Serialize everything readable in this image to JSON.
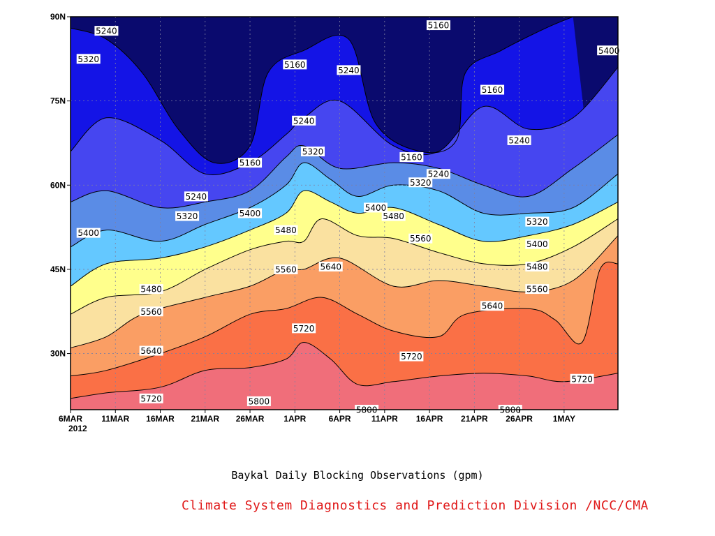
{
  "chart_data": {
    "type": "contour",
    "caption": "Baykal Daily Blocking Observations (gpm)",
    "credit": "Climate System Diagnostics and Prediction Division /NCC/CMA",
    "x_ticks": [
      "6MAR",
      "11MAR",
      "16MAR",
      "21MAR",
      "26MAR",
      "1APR",
      "6APR",
      "11APR",
      "16APR",
      "21APR",
      "26APR",
      "1MAY"
    ],
    "x_year": "2012",
    "y_ticks": [
      "30N",
      "45N",
      "60N",
      "75N",
      "90N"
    ],
    "ylim": [
      20,
      90
    ],
    "x_range": [
      "2012-03-06",
      "2012-05-06"
    ],
    "levels": [
      5160,
      5240,
      5320,
      5400,
      5480,
      5560,
      5640,
      5720,
      5800
    ],
    "fill_colors": [
      "#0a0a6e",
      "#1414e6",
      "#4646f0",
      "#5a8ce6",
      "#64c8ff",
      "#ffff8c",
      "#fae1a0",
      "#fa9e64",
      "#fa7046",
      "#f06e7a"
    ],
    "contours": [
      {
        "level": 5800,
        "points": [
          [
            "03-06",
            22
          ],
          [
            "03-10",
            23
          ],
          [
            "03-16",
            24
          ],
          [
            "03-21",
            27
          ],
          [
            "03-26",
            27.5
          ],
          [
            "03-30",
            29
          ],
          [
            "04-01",
            32
          ],
          [
            "04-04",
            29
          ],
          [
            "04-07",
            24.5
          ],
          [
            "04-11",
            25
          ],
          [
            "04-16",
            26
          ],
          [
            "04-21",
            26.5
          ],
          [
            "04-26",
            26
          ],
          [
            "04-30",
            25
          ],
          [
            "05-06",
            26.5
          ]
        ]
      },
      {
        "level": 5720,
        "points": [
          [
            "03-06",
            26
          ],
          [
            "03-10",
            27
          ],
          [
            "03-16",
            30
          ],
          [
            "03-21",
            33
          ],
          [
            "03-26",
            37
          ],
          [
            "03-30",
            38
          ],
          [
            "04-03",
            40
          ],
          [
            "04-07",
            37
          ],
          [
            "04-11",
            34
          ],
          [
            "04-16",
            33
          ],
          [
            "04-19",
            37
          ],
          [
            "04-26",
            38
          ],
          [
            "04-29",
            36
          ],
          [
            "05-02",
            32
          ],
          [
            "05-04",
            45
          ],
          [
            "05-06",
            46
          ]
        ]
      },
      {
        "level": 5640,
        "points": [
          [
            "03-06",
            31
          ],
          [
            "03-10",
            33
          ],
          [
            "03-14",
            37
          ],
          [
            "03-21",
            40
          ],
          [
            "03-26",
            42
          ],
          [
            "03-30",
            45
          ],
          [
            "04-01",
            45
          ],
          [
            "04-05",
            47
          ],
          [
            "04-11",
            42
          ],
          [
            "04-16",
            43
          ],
          [
            "04-21",
            42
          ],
          [
            "04-26",
            41
          ],
          [
            "05-01",
            43
          ],
          [
            "05-06",
            51
          ]
        ]
      },
      {
        "level": 5560,
        "points": [
          [
            "03-06",
            37
          ],
          [
            "03-10",
            40
          ],
          [
            "03-16",
            41
          ],
          [
            "03-21",
            45
          ],
          [
            "03-26",
            48.5
          ],
          [
            "03-30",
            50
          ],
          [
            "04-01",
            50
          ],
          [
            "04-03",
            54
          ],
          [
            "04-07",
            51
          ],
          [
            "04-11",
            50.5
          ],
          [
            "04-16",
            48
          ],
          [
            "04-21",
            46
          ],
          [
            "04-26",
            46
          ],
          [
            "05-01",
            49
          ],
          [
            "05-06",
            54
          ]
        ]
      },
      {
        "level": 5480,
        "points": [
          [
            "03-06",
            42
          ],
          [
            "03-10",
            46
          ],
          [
            "03-16",
            47
          ],
          [
            "03-21",
            49
          ],
          [
            "03-26",
            52
          ],
          [
            "03-30",
            55
          ],
          [
            "04-01",
            59
          ],
          [
            "04-04",
            57
          ],
          [
            "04-07",
            55
          ],
          [
            "04-11",
            56
          ],
          [
            "04-16",
            53
          ],
          [
            "04-21",
            50
          ],
          [
            "04-26",
            51
          ],
          [
            "05-01",
            53
          ],
          [
            "05-06",
            57
          ]
        ]
      },
      {
        "level": 5400,
        "points": [
          [
            "03-06",
            49
          ],
          [
            "03-10",
            52
          ],
          [
            "03-16",
            50
          ],
          [
            "03-21",
            53
          ],
          [
            "03-26",
            56
          ],
          [
            "03-30",
            60
          ],
          [
            "04-01",
            64
          ],
          [
            "04-04",
            61
          ],
          [
            "04-07",
            58
          ],
          [
            "04-11",
            60
          ],
          [
            "04-16",
            59
          ],
          [
            "04-21",
            55
          ],
          [
            "04-26",
            55
          ],
          [
            "05-01",
            56
          ],
          [
            "05-06",
            62
          ]
        ]
      },
      {
        "level": 5320,
        "points": [
          [
            "03-06",
            57
          ],
          [
            "03-10",
            59
          ],
          [
            "03-16",
            56
          ],
          [
            "03-21",
            57
          ],
          [
            "03-26",
            59
          ],
          [
            "03-30",
            65
          ],
          [
            "04-01",
            67
          ],
          [
            "04-05",
            63
          ],
          [
            "04-11",
            64
          ],
          [
            "04-16",
            63
          ],
          [
            "04-21",
            60
          ],
          [
            "04-26",
            58
          ],
          [
            "05-01",
            63
          ],
          [
            "05-06",
            69
          ]
        ]
      },
      {
        "level": 5240,
        "points": [
          [
            "03-06",
            66
          ],
          [
            "03-10",
            72
          ],
          [
            "03-16",
            68
          ],
          [
            "03-21",
            62
          ],
          [
            "03-26",
            64
          ],
          [
            "03-30",
            69
          ],
          [
            "04-01",
            72
          ],
          [
            "04-05",
            75
          ],
          [
            "04-11",
            67
          ],
          [
            "04-16",
            66
          ],
          [
            "04-21",
            74
          ],
          [
            "04-26",
            70
          ],
          [
            "05-01",
            72
          ],
          [
            "05-06",
            81
          ]
        ]
      },
      {
        "level": 5160,
        "points": [
          [
            "03-06",
            88
          ],
          [
            "03-10",
            86
          ],
          [
            "03-14",
            80
          ],
          [
            "03-18",
            70
          ],
          [
            "03-22",
            64
          ],
          [
            "03-26",
            67
          ],
          [
            "03-28",
            80
          ],
          [
            "04-01",
            84
          ],
          [
            "04-06",
            86
          ],
          [
            "04-09",
            71
          ],
          [
            "04-14",
            66
          ],
          [
            "04-18",
            68
          ],
          [
            "04-19",
            80
          ],
          [
            "04-23",
            84
          ],
          [
            "04-28",
            88
          ],
          [
            "05-01",
            90
          ]
        ]
      }
    ],
    "contour_labels": [
      {
        "text": "5240",
        "date": "03-10",
        "lat": 87.5
      },
      {
        "text": "5320",
        "date": "03-08",
        "lat": 82.5
      },
      {
        "text": "5160",
        "date": "03-31",
        "lat": 81.5
      },
      {
        "text": "5240",
        "date": "04-06",
        "lat": 80.5
      },
      {
        "text": "5160",
        "date": "04-16",
        "lat": 88.5
      },
      {
        "text": "5400",
        "date": "05-05",
        "lat": 84
      },
      {
        "text": "5160",
        "date": "04-22",
        "lat": 77
      },
      {
        "text": "5240",
        "date": "04-01",
        "lat": 71.5
      },
      {
        "text": "5160",
        "date": "03-26",
        "lat": 64
      },
      {
        "text": "5320",
        "date": "04-02",
        "lat": 66
      },
      {
        "text": "5160",
        "date": "04-13",
        "lat": 65
      },
      {
        "text": "5240",
        "date": "04-25",
        "lat": 68
      },
      {
        "text": "5240",
        "date": "03-20",
        "lat": 58
      },
      {
        "text": "5240",
        "date": "04-16",
        "lat": 62
      },
      {
        "text": "5320",
        "date": "03-19",
        "lat": 54.5
      },
      {
        "text": "5320",
        "date": "04-14",
        "lat": 60.5
      },
      {
        "text": "5400",
        "date": "03-26",
        "lat": 55
      },
      {
        "text": "5400",
        "date": "03-08",
        "lat": 51.5
      },
      {
        "text": "5400",
        "date": "04-09",
        "lat": 56
      },
      {
        "text": "5480",
        "date": "03-30",
        "lat": 52
      },
      {
        "text": "5480",
        "date": "04-11",
        "lat": 54.5
      },
      {
        "text": "5320",
        "date": "04-27",
        "lat": 53.5
      },
      {
        "text": "5400",
        "date": "04-27",
        "lat": 49.5
      },
      {
        "text": "5560",
        "date": "04-14",
        "lat": 50.5
      },
      {
        "text": "5480",
        "date": "04-27",
        "lat": 45.5
      },
      {
        "text": "5560",
        "date": "03-30",
        "lat": 45
      },
      {
        "text": "5640",
        "date": "04-04",
        "lat": 45.5
      },
      {
        "text": "5480",
        "date": "03-15",
        "lat": 41.5
      },
      {
        "text": "5560",
        "date": "04-27",
        "lat": 41.5
      },
      {
        "text": "5560",
        "date": "03-15",
        "lat": 37.5
      },
      {
        "text": "5640",
        "date": "04-22",
        "lat": 38.5
      },
      {
        "text": "5720",
        "date": "04-01",
        "lat": 34.5
      },
      {
        "text": "5640",
        "date": "03-15",
        "lat": 30.5
      },
      {
        "text": "5720",
        "date": "04-13",
        "lat": 29.5
      },
      {
        "text": "5720",
        "date": "05-02",
        "lat": 25.5
      },
      {
        "text": "5720",
        "date": "03-15",
        "lat": 22
      },
      {
        "text": "5800",
        "date": "03-27",
        "lat": 21.5
      },
      {
        "text": "5800",
        "date": "04-24",
        "lat": 17.5
      },
      {
        "text": "5800",
        "date": "04-08",
        "lat": 16.5
      }
    ]
  }
}
